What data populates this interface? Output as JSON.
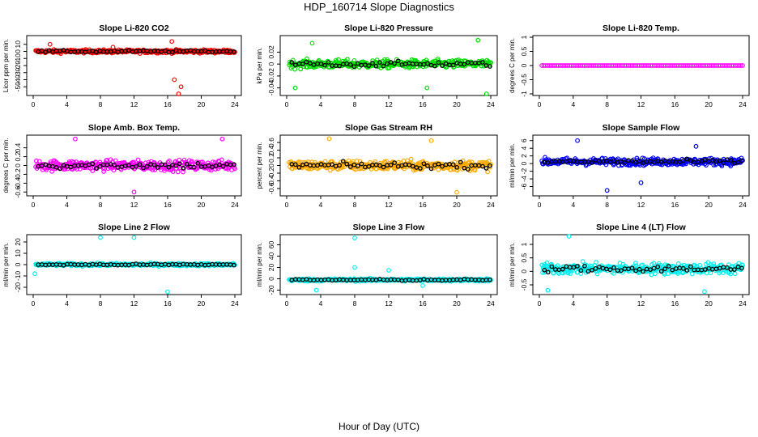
{
  "title": "HDP_160714  Slope Diagnostics",
  "chart_data": {
    "type": "scatter",
    "xlabel": "Hour of Day (UTC)",
    "xlim": [
      0,
      24
    ],
    "xticks": [
      0,
      4,
      8,
      12,
      16,
      20,
      24
    ],
    "panels": [
      {
        "title": "Slope Li-820 CO2",
        "ylabel": "Licor ppm per min.",
        "color": "#ff0000",
        "ylim": [
          -60,
          20
        ],
        "yticks": [
          -50,
          -40,
          -30,
          -20,
          -10,
          0,
          10
        ],
        "spread": 4,
        "series": [
          {
            "name": "slope",
            "center": 0
          }
        ],
        "outliers": [
          [
            16.5,
            14
          ],
          [
            16.8,
            -40
          ],
          [
            17.3,
            -60
          ],
          [
            17.6,
            -50
          ],
          [
            2.0,
            10
          ],
          [
            9.5,
            6
          ]
        ]
      },
      {
        "title": "Slope Li-820 Pressure",
        "ylabel": "kPa per min.",
        "color": "#00dd00",
        "ylim": [
          -0.05,
          0.045
        ],
        "yticks": [
          -0.04,
          -0.02,
          0.0,
          0.02
        ],
        "spread": 0.012,
        "series": [
          {
            "name": "slope",
            "center": 0
          }
        ],
        "outliers": [
          [
            3.0,
            0.035
          ],
          [
            22.5,
            0.04
          ],
          [
            23.5,
            -0.05
          ],
          [
            1.0,
            -0.04
          ],
          [
            16.5,
            -0.04
          ]
        ]
      },
      {
        "title": "Slope Li-820 Temp.",
        "ylabel": "degrees C per min.",
        "color": "#ff00ff",
        "ylim": [
          -1.0,
          1.0
        ],
        "yticks": [
          -1.0,
          -0.5,
          0.0,
          0.5,
          1.0
        ],
        "spread": 0.01,
        "series": [
          {
            "name": "slope",
            "center": 0
          }
        ],
        "outliers": []
      },
      {
        "title": "Slope Amb. Box Temp.",
        "ylabel": "degrees C per min.",
        "color": "#ff00ff",
        "ylim": [
          -0.65,
          0.65
        ],
        "yticks": [
          -0.6,
          -0.4,
          -0.2,
          0.0,
          0.2,
          0.4
        ],
        "spread": 0.2,
        "series": [
          {
            "name": "slope",
            "center": 0
          }
        ],
        "outliers": [
          [
            22.5,
            0.6
          ],
          [
            12.0,
            -0.6
          ],
          [
            5.0,
            0.6
          ]
        ]
      },
      {
        "title": "Slope Gas Stream RH",
        "ylabel": "percent per min.",
        "color": "#ffaa00",
        "ylim": [
          -0.75,
          0.75
        ],
        "yticks": [
          -0.6,
          -0.4,
          -0.2,
          0.0,
          0.2,
          0.4,
          0.6
        ],
        "spread": 0.22,
        "series": [
          {
            "name": "slope",
            "center": 0
          }
        ],
        "outliers": [
          [
            17.0,
            0.65
          ],
          [
            20.0,
            -0.7
          ],
          [
            5.0,
            0.7
          ]
        ]
      },
      {
        "title": "Slope Sample Flow",
        "ylabel": "ml/min per min.",
        "color": "#0000ff",
        "ylim": [
          -8,
          7
        ],
        "yticks": [
          -6,
          -4,
          -2,
          0,
          2,
          4,
          6
        ],
        "spread": 1.6,
        "series": [
          {
            "name": "slope",
            "center": 0.5
          }
        ],
        "outliers": [
          [
            8.0,
            -7
          ],
          [
            12.0,
            -5
          ],
          [
            4.5,
            6
          ],
          [
            18.5,
            4.5
          ]
        ]
      },
      {
        "title": "Slope Line 2 Flow",
        "ylabel": "ml/min per min.",
        "color": "#00eeee",
        "ylim": [
          -25,
          25
        ],
        "yticks": [
          -20,
          -10,
          0,
          10,
          20
        ],
        "spread": 2,
        "series": [
          {
            "name": "slope",
            "center": 0
          }
        ],
        "outliers": [
          [
            8.0,
            24
          ],
          [
            12.0,
            24
          ],
          [
            16.0,
            -24
          ],
          [
            0.2,
            -8
          ]
        ]
      },
      {
        "title": "Slope Line 3 Flow",
        "ylabel": "ml/min per min.",
        "color": "#00eeee",
        "ylim": [
          -25,
          75
        ],
        "yticks": [
          -20,
          0,
          20,
          40,
          60
        ],
        "spread": 4,
        "series": [
          {
            "name": "slope",
            "center": -2
          }
        ],
        "outliers": [
          [
            8.0,
            72
          ],
          [
            8.0,
            20
          ],
          [
            12.0,
            15
          ],
          [
            3.5,
            -20
          ],
          [
            16.0,
            -12
          ]
        ]
      },
      {
        "title": "Slope Line 4 (LT) Flow",
        "ylabel": "ml/min per min.",
        "color": "#00eeee",
        "ylim": [
          -0.8,
          1.3
        ],
        "yticks": [
          -0.5,
          0.0,
          0.5,
          1.0
        ],
        "spread": 0.35,
        "series": [
          {
            "name": "slope",
            "center": 0.1
          }
        ],
        "outliers": [
          [
            3.5,
            1.3
          ],
          [
            19.5,
            -0.75
          ],
          [
            1.0,
            -0.7
          ]
        ]
      }
    ]
  }
}
